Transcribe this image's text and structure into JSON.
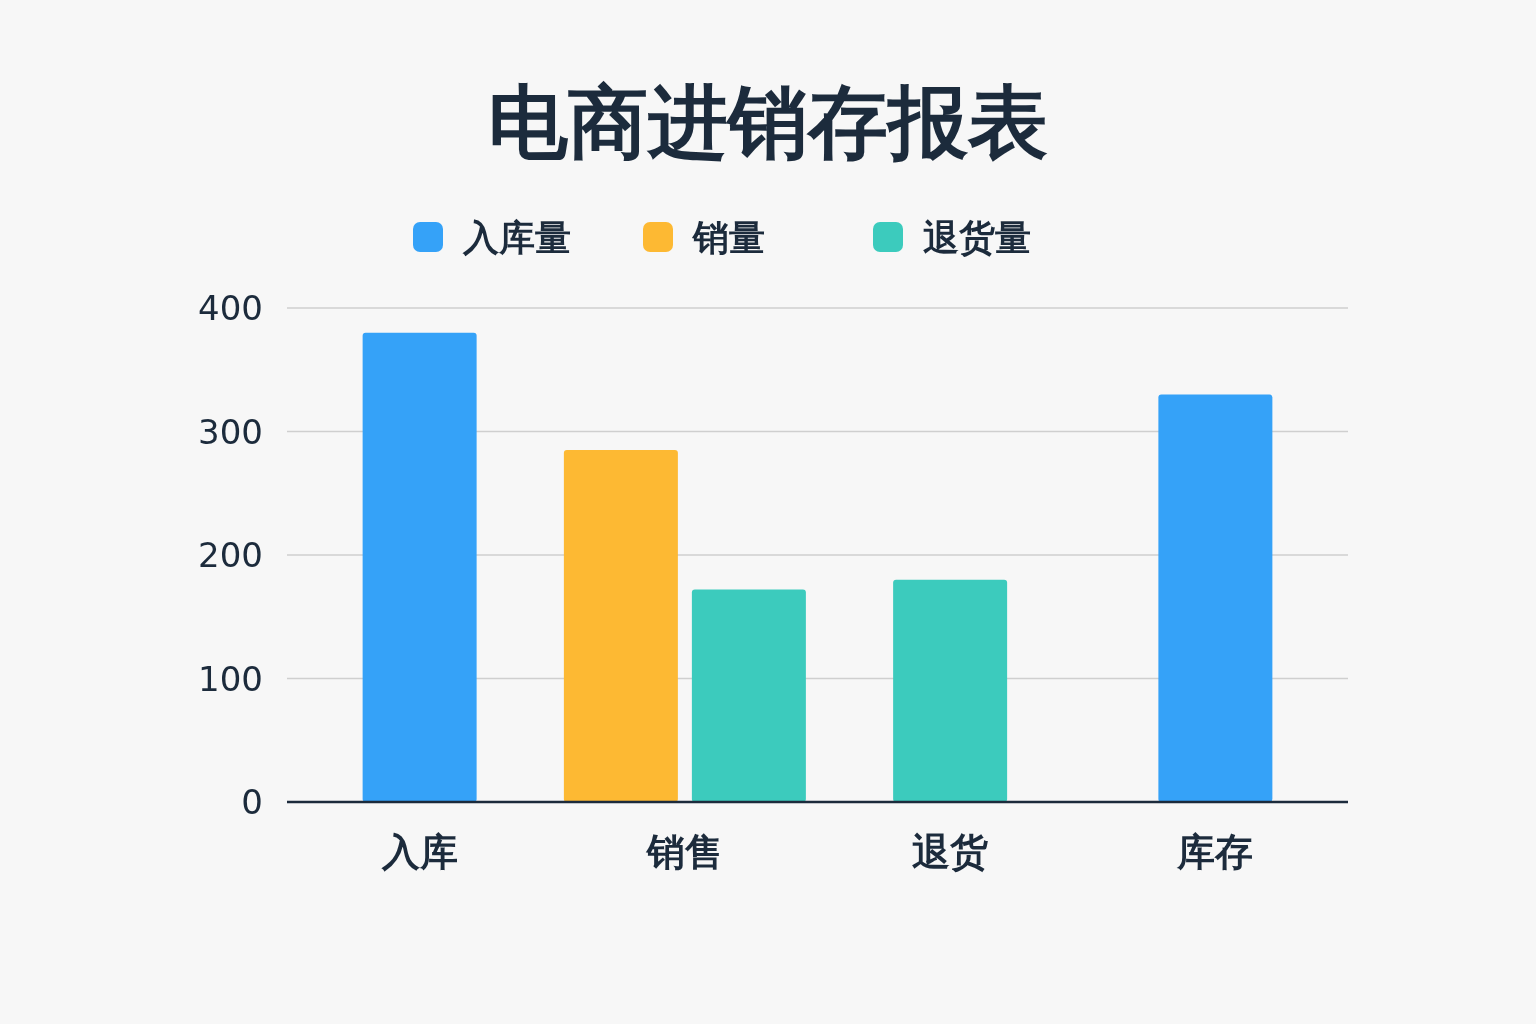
{
  "chart_data": {
    "type": "bar",
    "title": "电商进销存报表",
    "categories": [
      "入库",
      "销售",
      "退货",
      "库存"
    ],
    "series": [
      {
        "name": "入库量",
        "color": "#35a2f8",
        "values": [
          380,
          null,
          null,
          330
        ]
      },
      {
        "name": "销量",
        "color": "#fdb933",
        "values": [
          null,
          285,
          null,
          null
        ]
      },
      {
        "name": "退货量",
        "color": "#3ccbbd",
        "values": [
          null,
          172,
          180,
          null
        ]
      }
    ],
    "ylim": [
      0,
      400
    ],
    "yticks": [
      0,
      100,
      200,
      300,
      400
    ],
    "grid": "y",
    "legend": "top"
  }
}
